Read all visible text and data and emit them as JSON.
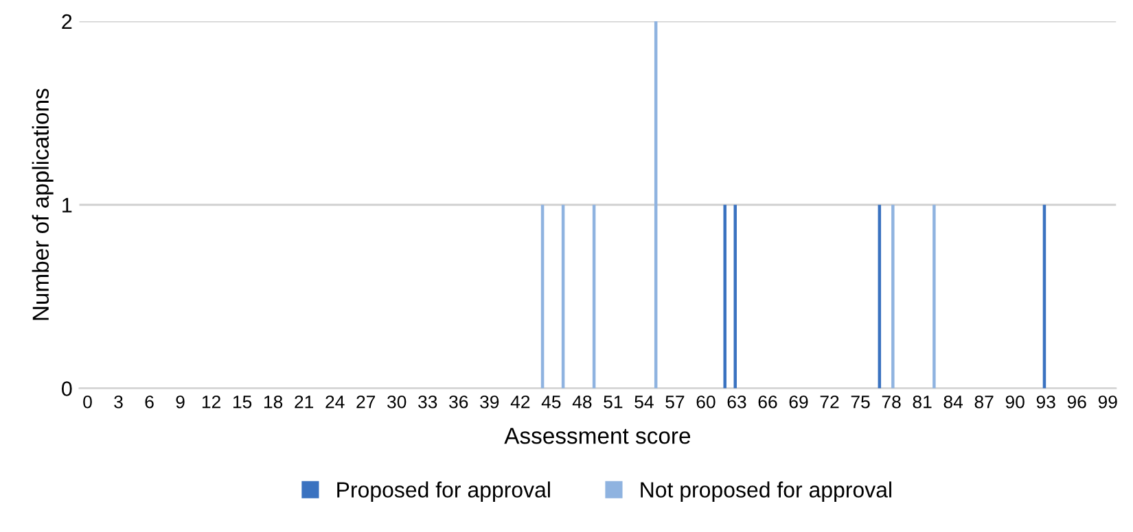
{
  "chart_data": {
    "type": "bar",
    "xlabel": "Assessment score",
    "ylabel": "Number of applications",
    "categories": [
      "0",
      null,
      null,
      "3",
      null,
      null,
      "6",
      null,
      null,
      "9",
      null,
      null,
      "12",
      null,
      null,
      "15",
      null,
      null,
      "18",
      null,
      null,
      "21",
      null,
      null,
      "24",
      null,
      null,
      "27",
      null,
      null,
      "30",
      null,
      null,
      "33",
      null,
      null,
      "36",
      null,
      null,
      "39",
      null,
      null,
      "42",
      null,
      null,
      "45",
      null,
      null,
      "48",
      null,
      null,
      "51",
      null,
      null,
      "54",
      null,
      null,
      "57",
      null,
      null,
      "60",
      null,
      null,
      "63",
      null,
      null,
      "66",
      null,
      null,
      "69",
      null,
      null,
      "72",
      null,
      null,
      "75",
      null,
      null,
      "78",
      null,
      null,
      "81",
      null,
      null,
      "84",
      null,
      null,
      "87",
      null,
      null,
      "90",
      null,
      null,
      "93",
      null,
      null,
      "96",
      null,
      null,
      "99"
    ],
    "series": [
      {
        "name": "Proposed for approval",
        "color": "#3a72c0",
        "values": [
          0,
          0,
          0,
          0,
          0,
          0,
          0,
          0,
          0,
          0,
          0,
          0,
          0,
          0,
          0,
          0,
          0,
          0,
          0,
          0,
          0,
          0,
          0,
          0,
          0,
          0,
          0,
          0,
          0,
          0,
          0,
          0,
          0,
          0,
          0,
          0,
          0,
          0,
          0,
          0,
          0,
          0,
          0,
          0,
          0,
          0,
          0,
          0,
          0,
          0,
          0,
          0,
          0,
          0,
          0,
          0,
          0,
          0,
          0,
          0,
          0,
          0,
          1,
          1,
          0,
          0,
          0,
          0,
          0,
          0,
          0,
          0,
          0,
          0,
          0,
          0,
          0,
          1,
          0,
          0,
          0,
          0,
          0,
          0,
          0,
          0,
          0,
          0,
          0,
          0,
          0,
          0,
          0,
          1,
          0,
          0,
          0,
          0,
          0,
          0
        ]
      },
      {
        "name": "Not proposed for approval",
        "color": "#8fb3e0",
        "values": [
          0,
          0,
          0,
          0,
          0,
          0,
          0,
          0,
          0,
          0,
          0,
          0,
          0,
          0,
          0,
          0,
          0,
          0,
          0,
          0,
          0,
          0,
          0,
          0,
          0,
          0,
          0,
          0,
          0,
          0,
          0,
          0,
          0,
          0,
          0,
          0,
          0,
          0,
          0,
          0,
          0,
          0,
          0,
          0,
          1,
          0,
          1,
          0,
          0,
          1,
          0,
          0,
          0,
          0,
          0,
          2,
          0,
          0,
          0,
          0,
          0,
          0,
          0,
          0,
          0,
          0,
          0,
          0,
          0,
          0,
          0,
          0,
          0,
          0,
          0,
          0,
          0,
          0,
          1,
          0,
          0,
          0,
          1,
          0,
          0,
          0,
          0,
          0,
          0,
          0,
          0,
          0,
          0,
          0,
          0,
          0,
          0,
          0,
          0,
          0
        ]
      }
    ],
    "ylim": [
      0,
      2
    ],
    "yticks": [
      0,
      1,
      2
    ],
    "grid": "y",
    "legend": "bottom"
  }
}
